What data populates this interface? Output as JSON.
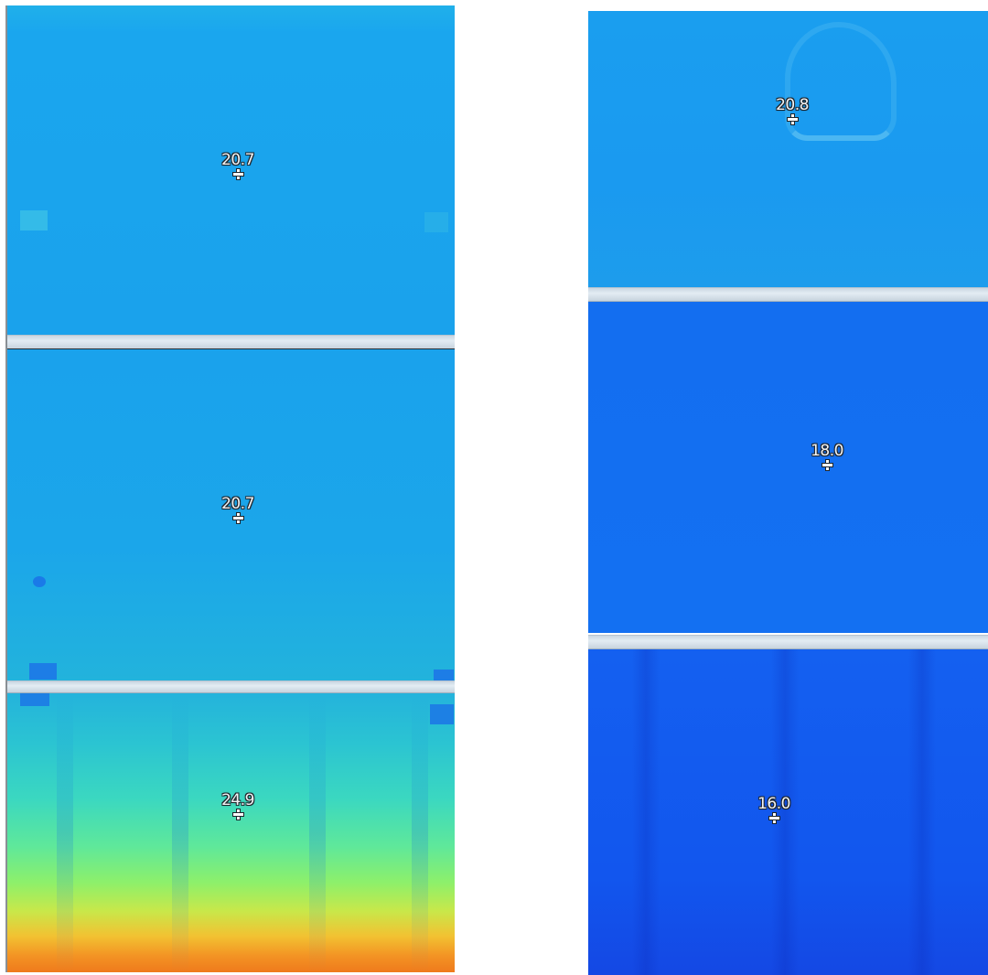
{
  "image": {
    "type": "thermal-camera-composite",
    "palette_colors": {
      "cool_blue": "#1370f2",
      "mid_blue": "#1aa2ec",
      "cyan": "#2bc4d2",
      "green": "#5fe89a",
      "yellow": "#c8e84a",
      "orange": "#ef7a1c",
      "separator": "#d9e3ec"
    }
  },
  "left_column": {
    "panels": [
      {
        "id": "left-top",
        "temperature": "20.7"
      },
      {
        "id": "left-mid",
        "temperature": "20.7"
      },
      {
        "id": "left-bot",
        "temperature": "24.9"
      }
    ]
  },
  "right_column": {
    "panels": [
      {
        "id": "right-top",
        "temperature": "20.8"
      },
      {
        "id": "right-mid",
        "temperature": "18.0"
      },
      {
        "id": "right-bot",
        "temperature": "16.0"
      }
    ]
  },
  "icons": {
    "crosshair": "crosshair-icon"
  }
}
